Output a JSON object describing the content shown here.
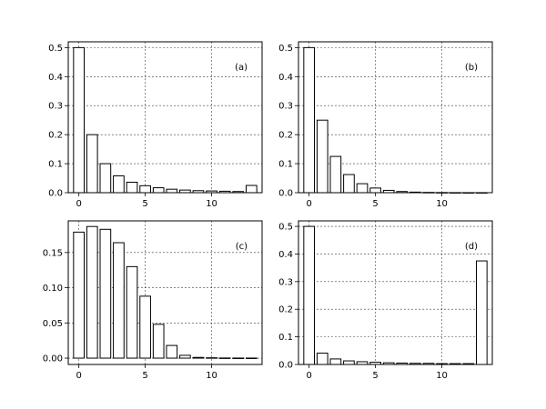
{
  "chart_data": [
    {
      "type": "bar",
      "panel_label": "(a)",
      "x": [
        0,
        1,
        2,
        3,
        4,
        5,
        6,
        7,
        8,
        9,
        10,
        11,
        12,
        13
      ],
      "values": [
        0.5,
        0.2,
        0.1,
        0.058,
        0.036,
        0.024,
        0.017,
        0.012,
        0.009,
        0.007,
        0.006,
        0.005,
        0.004,
        0.025
      ],
      "xlim": [
        -0.8,
        13.8
      ],
      "ylim": [
        0,
        0.52
      ],
      "xticks": [
        0,
        5,
        10
      ],
      "xtick_labels": [
        "0",
        "5",
        "10"
      ],
      "yticks": [
        0.0,
        0.1,
        0.2,
        0.3,
        0.4,
        0.5
      ],
      "ytick_labels": [
        "0.0",
        "0.1",
        "0.2",
        "0.3",
        "0.4",
        "0.5"
      ],
      "grid": true,
      "legend": "none"
    },
    {
      "type": "bar",
      "panel_label": "(b)",
      "x": [
        0,
        1,
        2,
        3,
        4,
        5,
        6,
        7,
        8,
        9,
        10,
        11,
        12,
        13
      ],
      "values": [
        0.5,
        0.25,
        0.125,
        0.0625,
        0.031,
        0.016,
        0.008,
        0.004,
        0.002,
        0.001,
        0.0005,
        0.0002,
        0.0001,
        0.0001
      ],
      "xlim": [
        -0.8,
        13.8
      ],
      "ylim": [
        0,
        0.52
      ],
      "xticks": [
        0,
        5,
        10
      ],
      "xtick_labels": [
        "0",
        "5",
        "10"
      ],
      "yticks": [
        0.0,
        0.1,
        0.2,
        0.3,
        0.4,
        0.5
      ],
      "ytick_labels": [
        "0.0",
        "0.1",
        "0.2",
        "0.3",
        "0.4",
        "0.5"
      ],
      "grid": true,
      "legend": "none"
    },
    {
      "type": "bar",
      "panel_label": "(c)",
      "x": [
        0,
        1,
        2,
        3,
        4,
        5,
        6,
        7,
        8,
        9,
        10,
        11,
        12,
        13
      ],
      "values": [
        0.179,
        0.187,
        0.183,
        0.164,
        0.13,
        0.088,
        0.048,
        0.018,
        0.004,
        0.001,
        0.0005,
        0.0002,
        0.0001,
        0.0001
      ],
      "xlim": [
        -0.8,
        13.8
      ],
      "ylim": [
        -0.009,
        0.195
      ],
      "xticks": [
        0,
        5,
        10
      ],
      "xtick_labels": [
        "0",
        "5",
        "10"
      ],
      "yticks": [
        0.0,
        0.05,
        0.1,
        0.15
      ],
      "ytick_labels": [
        "0.00",
        "0.05",
        "0.10",
        "0.15"
      ],
      "grid": true,
      "legend": "none"
    },
    {
      "type": "bar",
      "panel_label": "(d)",
      "x": [
        0,
        1,
        2,
        3,
        4,
        5,
        6,
        7,
        8,
        9,
        10,
        11,
        12,
        13
      ],
      "values": [
        0.5,
        0.041,
        0.02,
        0.013,
        0.01,
        0.008,
        0.006,
        0.005,
        0.004,
        0.004,
        0.003,
        0.003,
        0.003,
        0.375
      ],
      "xlim": [
        -0.8,
        13.8
      ],
      "ylim": [
        0,
        0.52
      ],
      "xticks": [
        0,
        5,
        10
      ],
      "xtick_labels": [
        "0",
        "5",
        "10"
      ],
      "yticks": [
        0.0,
        0.1,
        0.2,
        0.3,
        0.4,
        0.5
      ],
      "ytick_labels": [
        "0.0",
        "0.1",
        "0.2",
        "0.3",
        "0.4",
        "0.5"
      ],
      "grid": true,
      "legend": "none"
    }
  ]
}
